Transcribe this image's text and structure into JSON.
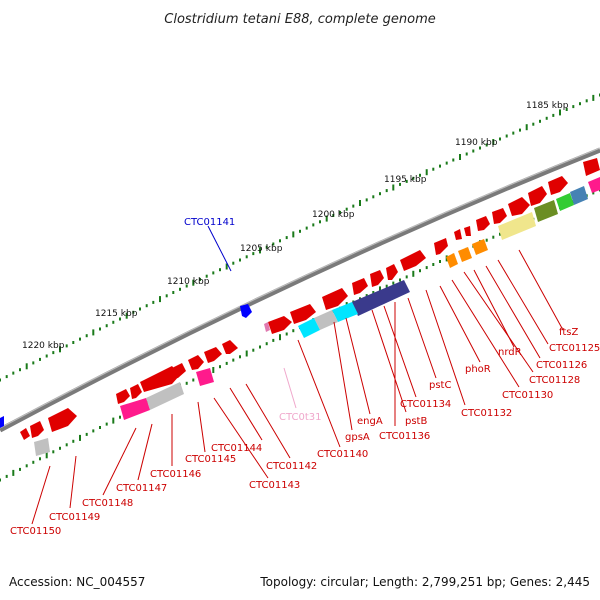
{
  "title": "Clostridium tetani E88, complete genome",
  "footer": {
    "accession": "Accession: NC_004557",
    "summary": "Topology: circular; Length: 2,799,251 bp; Genes: 2,445"
  },
  "colors": {
    "backbone": "#7a7a7a",
    "tick": "#1a7a1a",
    "gene_label": "#cc0000",
    "blue_label": "#0000cc",
    "trna_label": "#e07ab0",
    "forward_gene": "#e00000",
    "reverse_gene": "#e00000"
  },
  "kbp_labels": [
    "1185 kbp",
    "1190 kbp",
    "1195 kbp",
    "1200 kbp",
    "1205 kbp",
    "1210 kbp",
    "1215 kbp",
    "1220 kbp"
  ],
  "gene_labels": [
    {
      "text": "CTC01141",
      "kind": "blue"
    },
    {
      "text": "ftsZ",
      "kind": "red"
    },
    {
      "text": "CTC01125",
      "kind": "red"
    },
    {
      "text": "CTC01126",
      "kind": "red"
    },
    {
      "text": "nrdR",
      "kind": "red"
    },
    {
      "text": "CTC01128",
      "kind": "red"
    },
    {
      "text": "phoR",
      "kind": "red"
    },
    {
      "text": "CTC01130",
      "kind": "red"
    },
    {
      "text": "pstC",
      "kind": "red"
    },
    {
      "text": "CTC01132",
      "kind": "red"
    },
    {
      "text": "CTC01134",
      "kind": "red"
    },
    {
      "text": "engA",
      "kind": "red"
    },
    {
      "text": "pstB",
      "kind": "red"
    },
    {
      "text": "CTC0t31",
      "kind": "trna"
    },
    {
      "text": "gpsA",
      "kind": "red"
    },
    {
      "text": "CTC01136",
      "kind": "red"
    },
    {
      "text": "CTC01140",
      "kind": "red"
    },
    {
      "text": "CTC01142",
      "kind": "red"
    },
    {
      "text": "CTC01144",
      "kind": "red"
    },
    {
      "text": "CTC01145",
      "kind": "red"
    },
    {
      "text": "CTC01143",
      "kind": "red"
    },
    {
      "text": "CTC01146",
      "kind": "red"
    },
    {
      "text": "CTC01147",
      "kind": "red"
    },
    {
      "text": "CTC01148",
      "kind": "red"
    },
    {
      "text": "CTC01149",
      "kind": "red"
    },
    {
      "text": "CTC01150",
      "kind": "red"
    }
  ]
}
